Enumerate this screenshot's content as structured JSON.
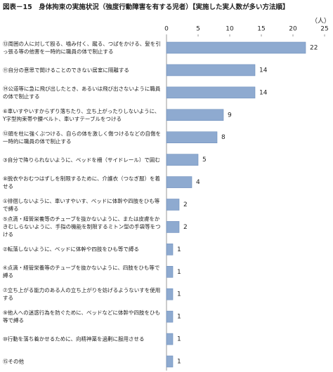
{
  "chart_data": {
    "type": "hbar",
    "title": "図表－15　身体拘束の実施状況（強度行動障害を有する児者）【実施した実人数が多い方法順】",
    "unit_label": "（人）",
    "categories": [
      "⑬周囲の人に対して殴る、噛み付く、蹴る、つばをかける、髪を引っ張る等の他害を一時的に職員の体で制止する",
      "⑪自分の意思で開けることのできない居室に隔離する",
      "⑭公道等に急に飛び出したとき、あるいは飛び出さないように職員の体で制止する",
      "⑥車いすやいすからずり落ちたり、立ち上がったりしないように、Y字型拘束帯や腰ベルト、車いすテーブルをつける",
      "⑫頭を柱に強くぶつける、自らの体を激しく傷つけるなどの自傷を一時的に職員の体で制止する",
      "③自分で降りられないように、ベッドを柵（サイドレール）で囲む",
      "⑧脱衣やおむつはずしを制限するために、介護衣（つなぎ服）を着せる",
      "①徘徊しないように、車いすやいす、ベッドに体幹や四肢をひも等で縛る",
      "⑤点滴・経管栄養等のチューブを抜かないように、または皮膚をかきむしらないように、手指の機能を制限するミトン型の手袋等をつける",
      "②転落しないように、ベッドに体幹や四肢をひも等で縛る",
      "④点滴・経管栄養等のチューブを抜かないように、四肢をひも等で縛る",
      "⑦立ち上がる能力のある人の立ち上がりを妨げるようないすを使用する",
      "⑨他人への迷惑行為を防ぐために、ベッドなどに体幹や四肢をひも等で縛る",
      "⑩行動を落ち着かせるために、向精神薬を過剰に服用させる",
      "⑮その他"
    ],
    "values": [
      22,
      14,
      14,
      9,
      8,
      5,
      4,
      2,
      2,
      1,
      1,
      1,
      1,
      1,
      1
    ],
    "color": "#8eaad0",
    "xlim": [
      0,
      25
    ],
    "xticks": [
      0,
      5,
      10,
      15,
      20,
      25
    ]
  }
}
